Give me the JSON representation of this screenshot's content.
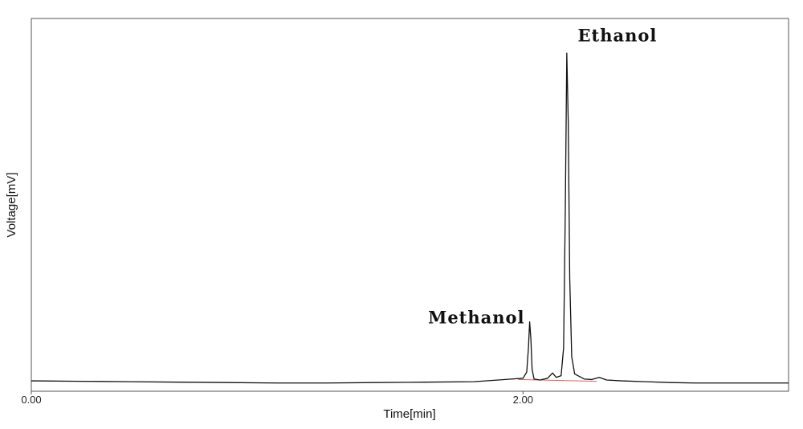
{
  "chart_data": {
    "type": "line",
    "xlabel": "Time[min]",
    "ylabel": "Voltage[mV]",
    "xlim": [
      0,
      3.08
    ],
    "ylim": [
      -1,
      42
    ],
    "grid": false,
    "x_ticks": [
      {
        "value": 0,
        "label": "0.00"
      },
      {
        "value": 2,
        "label": "2.00"
      }
    ],
    "annotations": [
      {
        "text": "Methanol",
        "x": 2.03,
        "y": 7.5
      },
      {
        "text": "Ethanol",
        "x": 2.19,
        "y": 40
      }
    ],
    "series": [
      {
        "color": "#111111",
        "values": [
          {
            "x": 0.0,
            "y": 0.2
          },
          {
            "x": 0.2,
            "y": 0.15
          },
          {
            "x": 0.4,
            "y": 0.1
          },
          {
            "x": 0.6,
            "y": 0.05
          },
          {
            "x": 0.8,
            "y": 0.0
          },
          {
            "x": 1.0,
            "y": -0.05
          },
          {
            "x": 1.2,
            "y": -0.05
          },
          {
            "x": 1.4,
            "y": 0.0
          },
          {
            "x": 1.6,
            "y": 0.05
          },
          {
            "x": 1.8,
            "y": 0.1
          },
          {
            "x": 1.9,
            "y": 0.3
          },
          {
            "x": 1.95,
            "y": 0.4
          },
          {
            "x": 2.0,
            "y": 0.5
          },
          {
            "x": 2.015,
            "y": 1.2
          },
          {
            "x": 2.022,
            "y": 4.0
          },
          {
            "x": 2.027,
            "y": 7.0
          },
          {
            "x": 2.032,
            "y": 5.0
          },
          {
            "x": 2.037,
            "y": 1.5
          },
          {
            "x": 2.045,
            "y": 0.4
          },
          {
            "x": 2.07,
            "y": 0.3
          },
          {
            "x": 2.1,
            "y": 0.5
          },
          {
            "x": 2.12,
            "y": 1.1
          },
          {
            "x": 2.135,
            "y": 0.6
          },
          {
            "x": 2.155,
            "y": 0.8
          },
          {
            "x": 2.165,
            "y": 4.0
          },
          {
            "x": 2.172,
            "y": 20.0
          },
          {
            "x": 2.178,
            "y": 38.0
          },
          {
            "x": 2.184,
            "y": 30.0
          },
          {
            "x": 2.19,
            "y": 12.0
          },
          {
            "x": 2.198,
            "y": 3.0
          },
          {
            "x": 2.21,
            "y": 1.0
          },
          {
            "x": 2.25,
            "y": 0.4
          },
          {
            "x": 2.28,
            "y": 0.35
          },
          {
            "x": 2.31,
            "y": 0.6
          },
          {
            "x": 2.34,
            "y": 0.3
          },
          {
            "x": 2.4,
            "y": 0.2
          },
          {
            "x": 2.5,
            "y": 0.1
          },
          {
            "x": 2.6,
            "y": 0.0
          },
          {
            "x": 2.7,
            "y": -0.05
          },
          {
            "x": 2.8,
            "y": -0.05
          },
          {
            "x": 2.9,
            "y": -0.05
          },
          {
            "x": 3.0,
            "y": -0.05
          },
          {
            "x": 3.08,
            "y": -0.05
          }
        ]
      },
      {
        "color": "#e06060",
        "values": [
          {
            "x": 1.98,
            "y": 0.35
          },
          {
            "x": 2.3,
            "y": 0.15
          }
        ]
      }
    ]
  }
}
